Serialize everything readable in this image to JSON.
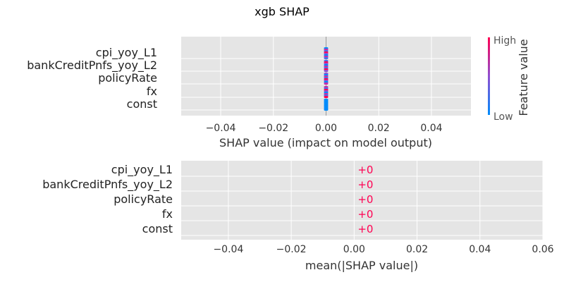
{
  "chart_data": [
    {
      "type": "scatter",
      "title": "xgb SHAP",
      "features": [
        "cpi_yoy_L1",
        "bankCreditPnfs_yoy_L2",
        "policyRate",
        "fx",
        "const"
      ],
      "xlabel": "SHAP value (impact on model output)",
      "x_ticks": [
        "−0.04",
        "−0.02",
        "0.00",
        "0.02",
        "0.04"
      ],
      "x_tick_values": [
        -0.04,
        -0.02,
        0.0,
        0.02,
        0.04
      ],
      "xlim": [
        -0.055,
        0.055
      ],
      "shap_values": [
        0,
        0,
        0,
        0,
        0
      ],
      "colorbar": {
        "label": "Feature value",
        "high": "High",
        "low": "Low",
        "color_high": "#ff0052",
        "color_low": "#008bfb"
      },
      "grid": true
    },
    {
      "type": "bar",
      "categories": [
        "cpi_yoy_L1",
        "bankCreditPnfs_yoy_L2",
        "policyRate",
        "fx",
        "const"
      ],
      "values": [
        0,
        0,
        0,
        0,
        0
      ],
      "value_labels": [
        "+0",
        "+0",
        "+0",
        "+0",
        "+0"
      ],
      "xlabel": "mean(|SHAP value|)",
      "x_ticks": [
        "−0.04",
        "−0.02",
        "0.00",
        "0.02",
        "0.04",
        "0.06"
      ],
      "x_tick_values": [
        -0.04,
        -0.02,
        0.0,
        0.02,
        0.04,
        0.06
      ],
      "xlim": [
        -0.055,
        0.06
      ],
      "label_color": "#ff0052",
      "grid": true
    }
  ]
}
